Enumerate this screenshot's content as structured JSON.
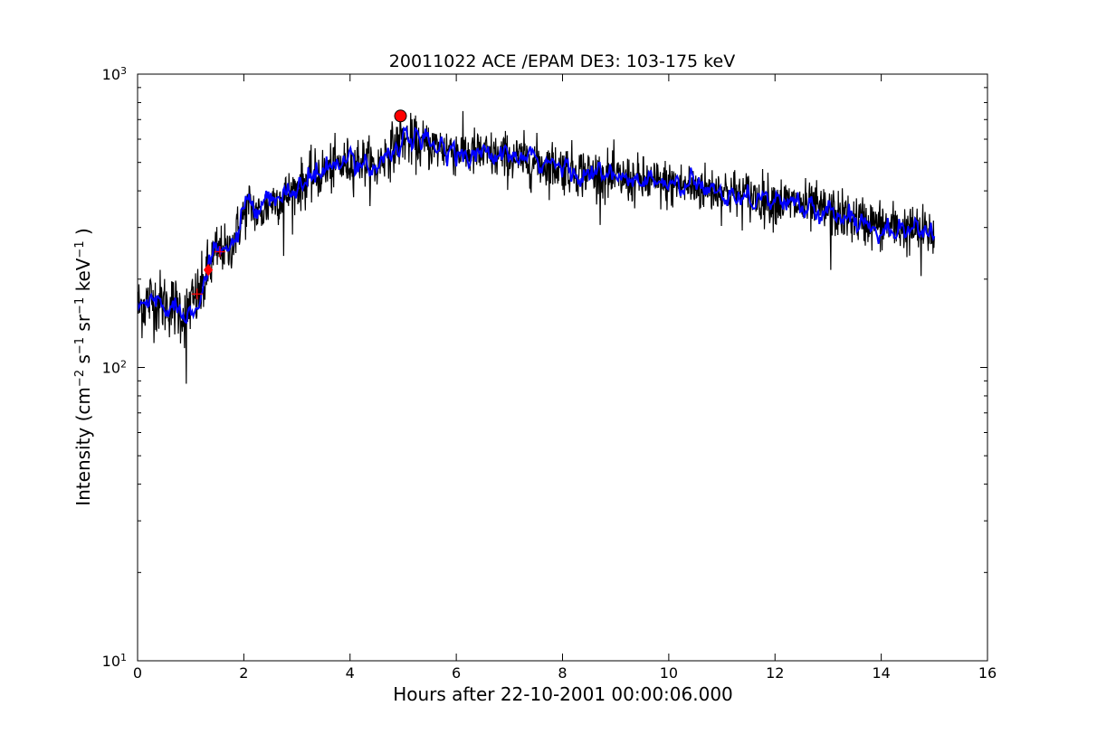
{
  "chart_data": {
    "type": "line",
    "title": "20011022 ACE /EPAM DE3: 103-175 keV",
    "xlabel": "Hours after 22-10-2001 00:00:06.000",
    "ylabel": "Intensity (cm⁻² s⁻¹ sr⁻¹ keV⁻¹)",
    "ylabel_parts": {
      "pre": "Intensity (cm",
      "sup1": "−2",
      "mid1": " s",
      "sup2": "−1",
      "mid2": " sr",
      "sup3": "−1",
      "mid3": " keV",
      "sup4": "−1",
      "post": " )"
    },
    "x_scale": "linear",
    "y_scale": "log",
    "xlim": [
      0,
      16
    ],
    "ylim": [
      10,
      1000
    ],
    "x_ticks": [
      "0",
      "2",
      "4",
      "6",
      "8",
      "10",
      "12",
      "14",
      "16"
    ],
    "y_ticks": [
      {
        "base": "10",
        "exp": "1",
        "value": 10
      },
      {
        "base": "10",
        "exp": "2",
        "value": 100
      },
      {
        "base": "10",
        "exp": "3",
        "value": 1000
      }
    ],
    "grid": false,
    "legend": "none",
    "series": [
      {
        "style": "raw",
        "color": "#000000",
        "x": [
          0,
          0.25,
          0.5,
          0.75,
          0.9,
          1.0,
          1.1,
          1.2,
          1.3,
          1.4,
          1.5,
          1.6,
          1.7,
          1.8,
          1.9,
          2.0,
          2.1,
          2.2,
          2.3,
          2.4,
          2.5,
          2.6,
          2.7,
          2.8,
          2.9,
          3.0,
          3.25,
          3.5,
          3.75,
          4.0,
          4.2,
          4.4,
          4.5,
          4.6,
          4.8,
          5.0,
          5.25,
          5.5,
          5.75,
          6.0,
          6.5,
          7.0,
          7.5,
          8.0,
          8.5,
          9.0,
          9.5,
          10.0,
          10.5,
          11.0,
          11.5,
          12.0,
          12.5,
          13.0,
          13.5,
          14.0,
          14.5,
          15.0
        ],
        "y": [
          160,
          170,
          165,
          160,
          150,
          165,
          170,
          180,
          205,
          230,
          245,
          255,
          245,
          270,
          300,
          330,
          360,
          345,
          330,
          350,
          365,
          375,
          380,
          385,
          395,
          410,
          440,
          465,
          485,
          500,
          510,
          490,
          470,
          520,
          560,
          600,
          580,
          570,
          560,
          550,
          530,
          520,
          500,
          480,
          460,
          440,
          430,
          420,
          410,
          400,
          385,
          370,
          355,
          340,
          320,
          305,
          295,
          285
        ],
        "spikes": [
          {
            "x": 0.92,
            "y": 88
          },
          {
            "x": 4.95,
            "y": 700
          },
          {
            "x": 2.75,
            "y": 240
          },
          {
            "x": 13.05,
            "y": 215
          },
          {
            "x": 14.75,
            "y": 205
          }
        ]
      },
      {
        "style": "smoothed",
        "color": "#0000ff",
        "x": [
          0,
          0.25,
          0.5,
          0.75,
          0.9,
          1.0,
          1.1,
          1.2,
          1.3,
          1.4,
          1.5,
          1.6,
          1.7,
          1.8,
          1.9,
          2.0,
          2.1,
          2.2,
          2.3,
          2.4,
          2.5,
          2.6,
          2.7,
          2.8,
          2.9,
          3.0,
          3.25,
          3.5,
          3.75,
          4.0,
          4.2,
          4.4,
          4.5,
          4.6,
          4.8,
          5.0,
          5.25,
          5.5,
          5.75,
          6.0,
          6.5,
          7.0,
          7.5,
          8.0,
          8.5,
          9.0,
          9.5,
          10.0,
          10.5,
          11.0,
          11.5,
          12.0,
          12.5,
          13.0,
          13.5,
          14.0,
          14.5,
          15.0
        ],
        "y": [
          160,
          170,
          165,
          160,
          150,
          165,
          170,
          180,
          205,
          230,
          245,
          255,
          245,
          270,
          300,
          330,
          360,
          345,
          330,
          350,
          365,
          375,
          380,
          385,
          395,
          410,
          440,
          465,
          485,
          500,
          510,
          490,
          470,
          520,
          560,
          600,
          580,
          570,
          560,
          550,
          530,
          520,
          500,
          480,
          460,
          440,
          430,
          420,
          410,
          400,
          385,
          370,
          355,
          340,
          320,
          305,
          295,
          285
        ]
      }
    ],
    "markers": [
      {
        "type": "circle",
        "color": "#ff0000",
        "x": 4.95,
        "y": 720
      },
      {
        "type": "diamond",
        "color": "#ff0000",
        "x": 1.33,
        "y": 215
      },
      {
        "type": "plus",
        "color": "#ff0000",
        "x": 1.55,
        "y": 248
      },
      {
        "type": "plus",
        "color": "#ff0000",
        "x": 1.12,
        "y": 178
      }
    ]
  }
}
